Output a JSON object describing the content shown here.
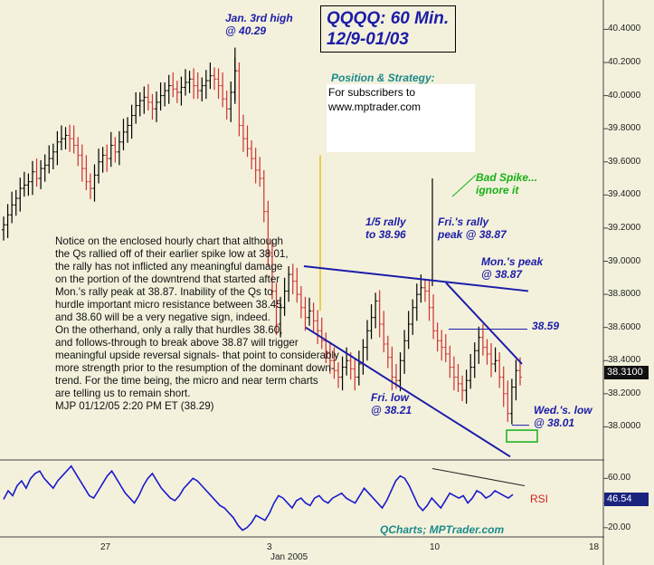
{
  "title": {
    "line1": "QQQQ: 60 Min.",
    "line2": "12/9-01/03"
  },
  "strategy": {
    "heading": "Position & Strategy:",
    "line1": "For subscribers to",
    "line2": "www.mptrader.com"
  },
  "annotations": {
    "jan3_high": [
      "Jan. 3rd high",
      "@ 40.29"
    ],
    "bad_spike": [
      "Bad Spike...",
      "ignore it"
    ],
    "rally_1_5": [
      "1/5 rally",
      "to 38.96"
    ],
    "fri_rally": [
      "Fri.'s rally",
      "peak @ 38.87"
    ],
    "mon_peak": [
      "Mon.'s peak",
      "@ 38.87"
    ],
    "level_3859": "38.59",
    "fri_low": [
      "Fri. low",
      "@ 38.21"
    ],
    "wed_low": [
      "Wed.'s. low",
      "@ 38.01"
    ]
  },
  "commentary": [
    "Notice on the enclosed hourly chart that although",
    "the Qs rallied off of their earlier spike low at 38.01,",
    "the rally has not inflicted any meaningful damage",
    "on the portion of the downtrend that started after",
    "Mon.'s rally peak at 38.87. Inability of the Qs to",
    "hurdle important micro resistance between 38.45",
    "and 38.60 will be a very negative sign, indeed.",
    "On the otherhand, only a rally that hurdles 38.60,",
    "and follows-through to break above 38.87 will trigger",
    "meaningful upside reversal signals- that point to considerably",
    "more strength prior to the resumption of the dominant down-",
    "trend. For the time being, the micro and near term charts",
    "are telling us to remain short.",
    "MJP 01/12/05 2:20 PM ET (38.29)"
  ],
  "colors": {
    "background": "#f3f1dc",
    "up_bar": "#000000",
    "down_bar": "#d03030",
    "trendline": "#1c1ca8",
    "rsi_line": "#1a1acc",
    "annotation": "#1c1ca8",
    "highlight": "#17b017"
  },
  "chart_data": [
    {
      "type": "bar",
      "subtype": "ohlc",
      "title": "QQQQ: 60 Min.",
      "ylim": [
        37.8,
        40.55
      ],
      "yticks": [
        "40.4000",
        "40.2000",
        "40.0000",
        "39.8000",
        "39.6000",
        "39.4000",
        "39.2000",
        "39.0000",
        "38.8000",
        "38.6000",
        "38.4000",
        "38.2000",
        "38.0000"
      ],
      "last_price": "38.3100",
      "xticks": [
        "27",
        "3",
        "Jan 2005",
        "10",
        "18"
      ],
      "grid": false,
      "closes": [
        39.22,
        39.28,
        39.34,
        39.38,
        39.44,
        39.46,
        39.48,
        39.54,
        39.5,
        39.56,
        39.58,
        39.62,
        39.66,
        39.72,
        39.74,
        39.76,
        39.74,
        39.7,
        39.64,
        39.56,
        39.48,
        39.44,
        39.52,
        39.6,
        39.64,
        39.62,
        39.7,
        39.66,
        39.72,
        39.78,
        39.82,
        39.88,
        39.94,
        39.97,
        39.99,
        39.96,
        39.92,
        39.96,
        40.0,
        40.03,
        40.06,
        40.04,
        40.02,
        40.05,
        40.08,
        40.1,
        40.06,
        40.03,
        40.06,
        40.09,
        40.12,
        40.1,
        40.06,
        39.98,
        39.92,
        40.02,
        40.15,
        39.82,
        39.74,
        39.68,
        39.62,
        39.55,
        39.5,
        39.3,
        39.05,
        38.82,
        38.62,
        38.72,
        38.82,
        38.92,
        38.88,
        38.8,
        38.72,
        38.66,
        38.7,
        38.64,
        38.58,
        38.52,
        38.45,
        38.4,
        38.34,
        38.3,
        38.36,
        38.4,
        38.35,
        38.3,
        38.38,
        38.48,
        38.58,
        38.66,
        38.76,
        38.62,
        38.5,
        38.42,
        38.3,
        38.28,
        38.4,
        38.52,
        38.62,
        38.72,
        38.8,
        38.84,
        38.82,
        38.72,
        38.58,
        38.52,
        38.48,
        38.44,
        38.36,
        38.3,
        38.26,
        38.22,
        38.28,
        38.36,
        38.46,
        38.54,
        38.48,
        38.44,
        38.38,
        38.4,
        38.3,
        38.2,
        38.08,
        38.24,
        38.34,
        38.3
      ],
      "annotations": [
        {
          "text": "Jan. 3rd high @ 40.29",
          "value": 40.29
        },
        {
          "text": "1/5 rally to 38.96",
          "value": 38.96
        },
        {
          "text": "Fri.'s rally peak @ 38.87",
          "value": 38.87
        },
        {
          "text": "Mon.'s peak @ 38.87",
          "value": 38.87
        },
        {
          "text": "38.59",
          "value": 38.59
        },
        {
          "text": "Fri. low @ 38.21",
          "value": 38.21
        },
        {
          "text": "Wed.'s. low @ 38.01",
          "value": 38.01
        },
        {
          "text": "Bad Spike... ignore it",
          "value": 39.5
        }
      ]
    },
    {
      "type": "line",
      "series": [
        {
          "name": "RSI",
          "values": [
            43,
            50,
            46,
            54,
            58,
            52,
            60,
            64,
            66,
            60,
            56,
            52,
            58,
            62,
            66,
            70,
            64,
            58,
            52,
            46,
            44,
            50,
            56,
            62,
            66,
            60,
            54,
            48,
            44,
            40,
            46,
            54,
            60,
            64,
            58,
            52,
            48,
            44,
            42,
            46,
            52,
            56,
            60,
            58,
            54,
            50,
            46,
            42,
            38,
            36,
            32,
            28,
            22,
            18,
            20,
            24,
            30,
            28,
            26,
            32,
            40,
            46,
            44,
            40,
            36,
            42,
            44,
            40,
            38,
            44,
            46,
            42,
            40,
            44,
            46,
            48,
            44,
            42,
            40,
            46,
            52,
            48,
            44,
            40,
            36,
            42,
            50,
            58,
            62,
            60,
            54,
            46,
            38,
            34,
            38,
            44,
            40,
            36,
            42,
            48,
            46,
            44,
            46,
            40,
            44,
            50,
            48,
            44,
            46,
            50,
            48,
            46,
            44,
            47
          ]
        }
      ],
      "ylim": [
        14,
        72
      ],
      "yticks": [
        "60.00",
        "40.00",
        "20.00"
      ],
      "last_value": "46.54",
      "label": "RSI",
      "source": "QCharts; MPTrader.com"
    }
  ]
}
